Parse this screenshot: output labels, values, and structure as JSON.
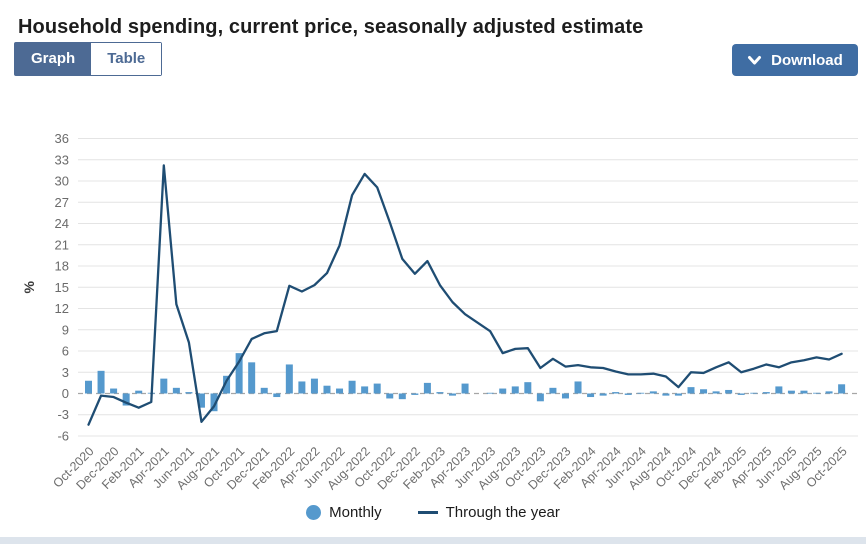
{
  "page": {
    "title": "Household spending, current price, seasonally adjusted estimate"
  },
  "toolbar": {
    "view_toggle": {
      "graph_label": "Graph",
      "table_label": "Table",
      "selected": "Graph"
    },
    "download_label": "Download",
    "download_icon": "chevron-down-icon"
  },
  "legend": {
    "monthly_label": "Monthly",
    "through_the_year_label": "Through the year"
  },
  "colors": {
    "accent_blue": "#4d6a94",
    "download_blue": "#3f6da3",
    "bar_blue": "#5599cd",
    "line_navy": "#1f4d73",
    "gridline": "#e4e4e4",
    "zero_line": "#a6a6a6",
    "tick_text": "#6b6b6b"
  },
  "chart_data": {
    "type": "combo",
    "title": "Household spending, current price, seasonally adjusted estimate",
    "xlabel": "",
    "ylabel": "%",
    "ylim": [
      -6,
      36
    ],
    "grid": true,
    "legend_position": "bottom",
    "y_ticks": [
      36,
      33,
      30,
      27,
      24,
      21,
      18,
      15,
      12,
      9,
      6,
      3,
      0,
      -3,
      -6
    ],
    "x_tick_labels": [
      "Oct-2020",
      "Dec-2020",
      "Feb-2021",
      "Apr-2021",
      "Jun-2021",
      "Aug-2021",
      "Oct-2021",
      "Dec-2021",
      "Feb-2022",
      "Apr-2022",
      "Jun-2022",
      "Aug-2022",
      "Oct-2022",
      "Dec-2022",
      "Feb-2023",
      "Apr-2023",
      "Jun-2023",
      "Aug-2023",
      "Oct-2023",
      "Dec-2023",
      "Feb-2024",
      "Apr-2024",
      "Jun-2024",
      "Aug-2024",
      "Oct-2024",
      "Dec-2024",
      "Feb-2025",
      "Apr-2025",
      "Jun-2025",
      "Aug-2025",
      "Oct-2025"
    ],
    "categories": [
      "Oct-2020",
      "Nov-2020",
      "Dec-2020",
      "Jan-2021",
      "Feb-2021",
      "Mar-2021",
      "Apr-2021",
      "May-2021",
      "Jun-2021",
      "Jul-2021",
      "Aug-2021",
      "Sep-2021",
      "Oct-2021",
      "Nov-2021",
      "Dec-2021",
      "Jan-2022",
      "Feb-2022",
      "Mar-2022",
      "Apr-2022",
      "May-2022",
      "Jun-2022",
      "Jul-2022",
      "Aug-2022",
      "Sep-2022",
      "Oct-2022",
      "Nov-2022",
      "Dec-2022",
      "Jan-2023",
      "Feb-2023",
      "Mar-2023",
      "Apr-2023",
      "May-2023",
      "Jun-2023",
      "Jul-2023",
      "Aug-2023",
      "Sep-2023",
      "Oct-2023",
      "Nov-2023",
      "Dec-2023",
      "Jan-2024",
      "Feb-2024",
      "Mar-2024",
      "Apr-2024",
      "May-2024",
      "Jun-2024",
      "Jul-2024",
      "Aug-2024",
      "Sep-2024",
      "Oct-2024",
      "Nov-2024",
      "Dec-2024",
      "Jan-2025",
      "Feb-2025",
      "Mar-2025",
      "Apr-2025",
      "May-2025",
      "Jun-2025",
      "Jul-2025",
      "Aug-2025",
      "Sep-2025",
      "Oct-2025"
    ],
    "series": [
      {
        "name": "Monthly",
        "type": "column",
        "color": "#5599cd",
        "values": [
          1.8,
          3.2,
          0.7,
          -1.7,
          0.4,
          0.1,
          2.1,
          0.8,
          0.2,
          -2.0,
          -2.5,
          2.5,
          5.7,
          4.4,
          0.8,
          -0.5,
          4.1,
          1.7,
          2.1,
          1.1,
          0.7,
          1.8,
          1.0,
          1.4,
          -0.7,
          -0.8,
          -0.2,
          1.5,
          0.2,
          -0.3,
          1.4,
          0.0,
          0.1,
          0.7,
          1.0,
          1.6,
          -1.1,
          0.8,
          -0.7,
          1.7,
          -0.5,
          -0.3,
          0.2,
          -0.2,
          0.1,
          0.3,
          -0.3,
          -0.3,
          0.9,
          0.6,
          0.3,
          0.5,
          -0.2,
          0.1,
          0.2,
          1.0,
          0.4,
          0.4,
          0.1,
          0.3,
          1.3
        ]
      },
      {
        "name": "Through the year",
        "type": "line",
        "color": "#1f4d73",
        "values": [
          -4.4,
          -0.3,
          -0.5,
          -1.3,
          -2.0,
          -1.2,
          32.2,
          12.6,
          7.2,
          -4.0,
          -1.8,
          1.8,
          4.5,
          7.7,
          8.5,
          8.8,
          15.2,
          14.4,
          15.3,
          17.0,
          20.9,
          28.0,
          31.0,
          29.1,
          24.2,
          19.0,
          16.9,
          18.7,
          15.3,
          12.9,
          11.2,
          10.0,
          8.8,
          5.7,
          6.3,
          6.4,
          3.6,
          4.9,
          3.8,
          4.0,
          3.7,
          3.6,
          3.1,
          2.7,
          2.7,
          2.8,
          2.4,
          0.9,
          3.0,
          2.9,
          3.7,
          4.4,
          3.0,
          3.5,
          4.1,
          3.7,
          4.4,
          4.7,
          5.1,
          4.8,
          5.6
        ]
      }
    ]
  }
}
